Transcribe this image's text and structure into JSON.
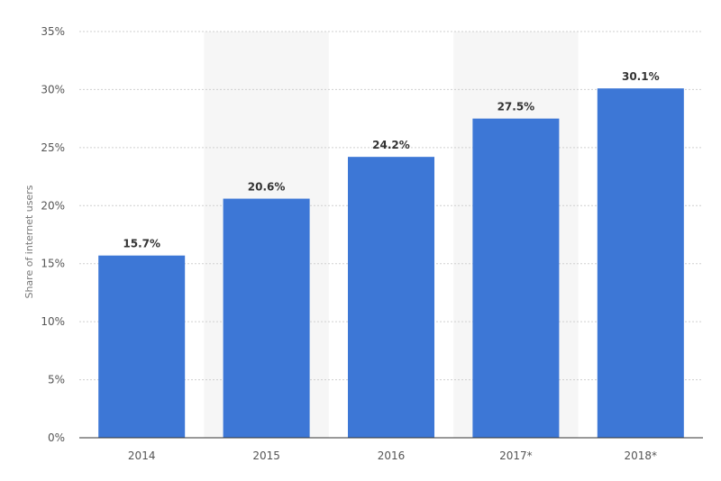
{
  "chart_data": {
    "type": "bar",
    "ylabel": "Share of internet users",
    "xlabel": "",
    "categories": [
      "2014",
      "2015",
      "2016",
      "2017*",
      "2018*"
    ],
    "series": [
      {
        "values": [
          15.7,
          20.6,
          24.2,
          27.5,
          30.1
        ],
        "labels": [
          "15.7%",
          "20.6%",
          "24.2%",
          "27.5%",
          "30.1%"
        ]
      }
    ],
    "ylim": [
      0,
      35
    ],
    "yticks": [
      0,
      5,
      10,
      15,
      20,
      25,
      30,
      35
    ],
    "ytick_labels": [
      "0%",
      "5%",
      "10%",
      "15%",
      "20%",
      "25%",
      "30%",
      "35%"
    ],
    "grid": true,
    "legend": "none",
    "colors": {
      "bar": "#3d77d6",
      "grid": "#cfcfcf",
      "band": "#f6f6f6",
      "axis": "#333333"
    }
  }
}
